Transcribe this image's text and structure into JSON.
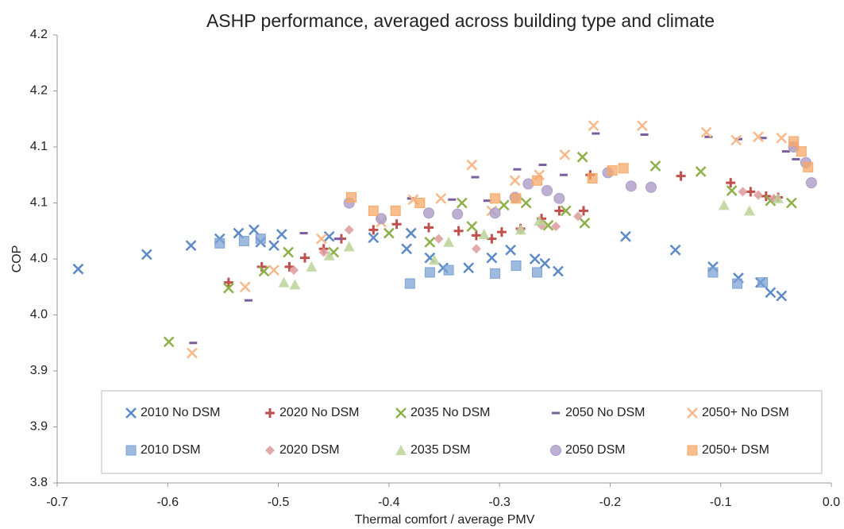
{
  "chart_data": {
    "type": "scatter",
    "title": "ASHP performance, averaged across building type and climate",
    "x_label": "Thermal comfort / average PMV",
    "y_label": "COP",
    "xlim": [
      -0.7,
      0.0
    ],
    "xticks": [
      -0.7,
      -0.6,
      -0.5,
      -0.4,
      -0.3,
      -0.2,
      -0.1,
      {
        "value": 0.0,
        "label": "0.0"
      }
    ],
    "ylim": [
      3.8,
      4.2
    ],
    "yticks": [
      {
        "value": 3.8,
        "label": "3.8"
      },
      {
        "value": 3.85,
        "label": "3.9"
      },
      {
        "value": 3.9,
        "label": "3.9"
      },
      {
        "value": 3.95,
        "label": "4.0"
      },
      {
        "value": 4.0,
        "label": "4.0"
      },
      {
        "value": 4.05,
        "label": "4.1"
      },
      {
        "value": 4.1,
        "label": "4.1"
      },
      {
        "value": 4.15,
        "label": "4.2"
      },
      {
        "value": 4.2,
        "label": "4.2"
      }
    ],
    "grid": false,
    "legend": "bottom",
    "series": [
      {
        "name": "2010 No DSM",
        "color": "#5b8ac6",
        "marker": "x",
        "x": [
          -0.681,
          -0.619,
          -0.579,
          -0.553,
          -0.536,
          -0.522,
          -0.516,
          -0.497,
          -0.504,
          -0.454,
          -0.414,
          -0.38,
          -0.384,
          -0.363,
          -0.351,
          -0.328,
          -0.307,
          -0.29,
          -0.268,
          -0.259,
          -0.247,
          -0.186,
          -0.141,
          -0.107,
          -0.084,
          -0.064,
          -0.055,
          -0.045
        ],
        "values": [
          3.991,
          4.004,
          4.012,
          4.018,
          4.023,
          4.026,
          4.015,
          4.022,
          4.012,
          4.02,
          4.019,
          4.023,
          4.009,
          4.001,
          3.992,
          3.992,
          4.001,
          4.008,
          4.0,
          3.996,
          3.989,
          4.02,
          4.008,
          3.993,
          3.983,
          3.979,
          3.97,
          3.967
        ]
      },
      {
        "name": "2020 No DSM",
        "color": "#c0504d",
        "marker": "plus",
        "x": [
          -0.545,
          -0.515,
          -0.49,
          -0.476,
          -0.459,
          -0.443,
          -0.414,
          -0.393,
          -0.364,
          -0.337,
          -0.321,
          -0.307,
          -0.298,
          -0.281,
          -0.262,
          -0.246,
          -0.224,
          -0.218,
          -0.136,
          -0.091,
          -0.073,
          -0.059,
          -0.048
        ],
        "values": [
          3.979,
          3.993,
          3.993,
          4.001,
          4.009,
          4.018,
          4.026,
          4.031,
          4.028,
          4.025,
          4.021,
          4.018,
          4.024,
          4.027,
          4.036,
          4.043,
          4.043,
          4.075,
          4.074,
          4.068,
          4.06,
          4.056,
          4.055
        ]
      },
      {
        "name": "2035 No DSM",
        "color": "#8db04a",
        "marker": "x",
        "x": [
          -0.599,
          -0.545,
          -0.513,
          -0.491,
          -0.45,
          -0.4,
          -0.363,
          -0.334,
          -0.325,
          -0.296,
          -0.276,
          -0.256,
          -0.24,
          -0.223,
          -0.225,
          -0.159,
          -0.118,
          -0.09,
          -0.055,
          -0.036
        ],
        "values": [
          3.926,
          3.974,
          3.989,
          4.006,
          4.006,
          4.023,
          4.015,
          4.05,
          4.029,
          4.048,
          4.05,
          4.03,
          4.043,
          4.032,
          4.091,
          4.083,
          4.078,
          4.061,
          4.052,
          4.05
        ]
      },
      {
        "name": "2050 No DSM",
        "color": "#7a5fa0",
        "marker": "dash",
        "x": [
          -0.577,
          -0.527,
          -0.477,
          -0.446,
          -0.38,
          -0.343,
          -0.322,
          -0.311,
          -0.284,
          -0.261,
          -0.242,
          -0.213,
          -0.169,
          -0.111,
          -0.084,
          -0.062,
          -0.041,
          -0.032
        ],
        "values": [
          3.925,
          3.963,
          4.023,
          4.018,
          4.054,
          4.053,
          4.073,
          4.052,
          4.08,
          4.084,
          4.075,
          4.112,
          4.111,
          4.109,
          4.107,
          4.108,
          4.096,
          4.089
        ]
      },
      {
        "name": "2050+ No DSM",
        "color": "#f9b98a",
        "marker": "x",
        "x": [
          -0.578,
          -0.53,
          -0.504,
          -0.461,
          -0.407,
          -0.378,
          -0.353,
          -0.325,
          -0.307,
          -0.286,
          -0.264,
          -0.241,
          -0.215,
          -0.171,
          -0.113,
          -0.086,
          -0.066,
          -0.045,
          -0.034
        ],
        "values": [
          3.916,
          3.975,
          3.99,
          4.018,
          4.033,
          4.053,
          4.054,
          4.084,
          4.043,
          4.07,
          4.075,
          4.093,
          4.119,
          4.119,
          4.113,
          4.106,
          4.109,
          4.108,
          4.101
        ]
      },
      {
        "name": "2010 DSM",
        "color": "#7ea3d4",
        "marker": "square",
        "x": [
          -0.553,
          -0.531,
          -0.516,
          -0.381,
          -0.363,
          -0.346,
          -0.304,
          -0.285,
          -0.266,
          -0.107,
          -0.085,
          -0.062
        ],
        "values": [
          4.014,
          4.016,
          4.018,
          3.978,
          3.988,
          3.99,
          3.987,
          3.994,
          3.988,
          3.988,
          3.978,
          3.979
        ]
      },
      {
        "name": "2020 DSM",
        "color": "#dc9a98",
        "marker": "diamond",
        "x": [
          -0.486,
          -0.459,
          -0.436,
          -0.355,
          -0.321,
          -0.281,
          -0.262,
          -0.249,
          -0.229,
          -0.08,
          -0.066,
          -0.052
        ],
        "values": [
          3.99,
          4.006,
          4.026,
          4.018,
          4.009,
          4.026,
          4.03,
          4.029,
          4.038,
          4.06,
          4.057,
          4.054
        ]
      },
      {
        "name": "2035 DSM",
        "color": "#bcd49a",
        "marker": "triangle",
        "x": [
          -0.495,
          -0.485,
          -0.47,
          -0.454,
          -0.436,
          -0.359,
          -0.346,
          -0.314,
          -0.281,
          -0.264,
          -0.097,
          -0.074,
          -0.048
        ],
        "values": [
          3.979,
          3.977,
          3.993,
          4.003,
          4.011,
          3.999,
          4.015,
          4.022,
          4.026,
          4.034,
          4.048,
          4.043,
          4.054
        ]
      },
      {
        "name": "2050 DSM",
        "color": "#ac9cc8",
        "marker": "circle",
        "x": [
          -0.436,
          -0.407,
          -0.364,
          -0.338,
          -0.304,
          -0.286,
          -0.274,
          -0.257,
          -0.246,
          -0.202,
          -0.181,
          -0.163,
          -0.034,
          -0.023,
          -0.018
        ],
        "values": [
          4.05,
          4.036,
          4.041,
          4.04,
          4.041,
          4.055,
          4.067,
          4.061,
          4.054,
          4.077,
          4.065,
          4.064,
          4.1,
          4.086,
          4.068
        ]
      },
      {
        "name": "2050+ DSM",
        "color": "#f7a868",
        "marker": "square",
        "x": [
          -0.434,
          -0.414,
          -0.394,
          -0.372,
          -0.304,
          -0.285,
          -0.266,
          -0.216,
          -0.198,
          -0.188,
          -0.034,
          -0.027,
          -0.021
        ],
        "values": [
          4.055,
          4.043,
          4.043,
          4.05,
          4.054,
          4.054,
          4.07,
          4.072,
          4.079,
          4.081,
          4.105,
          4.096,
          4.082
        ]
      }
    ]
  }
}
